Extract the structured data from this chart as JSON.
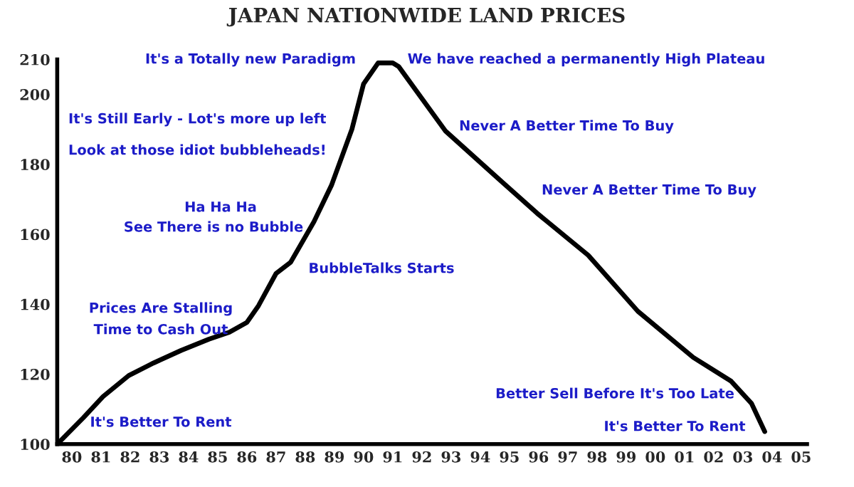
{
  "chart_data": {
    "type": "line",
    "title": "JAPAN NATIONWIDE LAND PRICES",
    "x": [
      1979.5,
      1980.4,
      1981.07,
      1981.95,
      1982.8,
      1983.75,
      1984.7,
      1985.4,
      1986.0,
      1986.4,
      1987.0,
      1987.5,
      1988.3,
      1988.9,
      1989.6,
      1990.0,
      1990.5,
      1991.0,
      1991.2,
      1992.8,
      1994.5,
      1995.95,
      1997.7,
      1999.4,
      2001.3,
      2002.6,
      2003.3,
      2003.75
    ],
    "series": [
      {
        "color": "#000000",
        "values": [
          100,
          107.6,
          113.6,
          119.6,
          123.2,
          126.8,
          130,
          132,
          134.8,
          139.6,
          148.8,
          152,
          163.6,
          174,
          190,
          203,
          209,
          209,
          208,
          189.6,
          176.8,
          166,
          154,
          138,
          124.8,
          118,
          111.6,
          103.6
        ]
      }
    ],
    "xlim": [
      1979.5,
      2005.2
    ],
    "ylim": [
      100,
      210
    ],
    "xticks": [
      {
        "value": 1980,
        "label": "80"
      },
      {
        "value": 1981,
        "label": "81"
      },
      {
        "value": 1982,
        "label": "82"
      },
      {
        "value": 1983,
        "label": "83"
      },
      {
        "value": 1984,
        "label": "84"
      },
      {
        "value": 1985,
        "label": "85"
      },
      {
        "value": 1986,
        "label": "86"
      },
      {
        "value": 1987,
        "label": "87"
      },
      {
        "value": 1988,
        "label": "88"
      },
      {
        "value": 1989,
        "label": "89"
      },
      {
        "value": 1990,
        "label": "90"
      },
      {
        "value": 1991,
        "label": "91"
      },
      {
        "value": 1992,
        "label": "92"
      },
      {
        "value": 1993,
        "label": "93"
      },
      {
        "value": 1994,
        "label": "94"
      },
      {
        "value": 1995,
        "label": "95"
      },
      {
        "value": 1996,
        "label": "96"
      },
      {
        "value": 1997,
        "label": "97"
      },
      {
        "value": 1998,
        "label": "98"
      },
      {
        "value": 1999,
        "label": "99"
      },
      {
        "value": 2000,
        "label": "00"
      },
      {
        "value": 2001,
        "label": "01"
      },
      {
        "value": 2002,
        "label": "02"
      },
      {
        "value": 2003,
        "label": "03"
      },
      {
        "value": 2004,
        "label": "04"
      },
      {
        "value": 2005,
        "label": "05"
      }
    ],
    "yticks": [
      100,
      120,
      140,
      160,
      180,
      200,
      210
    ],
    "grid": false,
    "legend": false,
    "marker": "none",
    "line_style": "solid",
    "annotations": [
      "It's a Totally new Paradigm",
      "We have reached a permanently High Plateau",
      "It's Still Early - Lot's more up left",
      "Look at those idiot bubbleheads!",
      "Ha Ha Ha",
      "See There is no Bubble",
      "BubbleTalks Starts",
      "Prices Are Stalling",
      "Time to Cash Out",
      "It's Better To Rent",
      "Never A Better Time To Buy",
      "Never A Better Time To Buy",
      "Better Sell Before It's Too Late",
      "It's Better To Rent"
    ]
  }
}
